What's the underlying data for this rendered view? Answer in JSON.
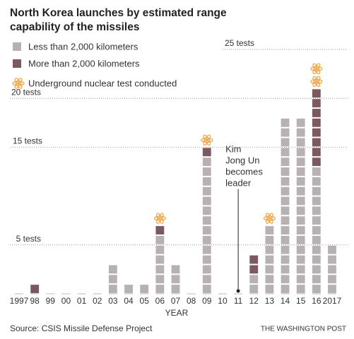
{
  "chart_data": {
    "type": "unit-stack",
    "title_lines": [
      "North Korea launches by estimated range",
      "capability of the missiles"
    ],
    "categories": [
      "1997",
      "98",
      "99",
      "00",
      "01",
      "02",
      "03",
      "04",
      "05",
      "06",
      "07",
      "08",
      "09",
      "10",
      "11",
      "12",
      "13",
      "14",
      "15",
      "16",
      "2017"
    ],
    "series": [
      {
        "name": "Less than 2,000 kilometers",
        "color": "#b8b1b3",
        "values": [
          0,
          0,
          0,
          0,
          0,
          0,
          3,
          1,
          1,
          6,
          3,
          0,
          14,
          0,
          0,
          2,
          7,
          18,
          18,
          13,
          5
        ]
      },
      {
        "name": "More than 2,000 kilometers",
        "color": "#7b5960",
        "values": [
          0,
          1,
          0,
          0,
          0,
          0,
          0,
          0,
          0,
          1,
          0,
          0,
          1,
          0,
          0,
          2,
          0,
          0,
          0,
          8,
          0
        ]
      }
    ],
    "nuclear_legend": "Underground nuclear test conducted",
    "nuclear_tests": [
      0,
      0,
      0,
      0,
      0,
      0,
      0,
      0,
      0,
      1,
      0,
      0,
      1,
      0,
      0,
      0,
      1,
      0,
      0,
      2,
      0
    ],
    "nuclear_color": "#f0a94c",
    "ylim": [
      0,
      25
    ],
    "yticks": [
      {
        "value": 5,
        "label": "5 tests"
      },
      {
        "value": 15,
        "label": "15 tests"
      },
      {
        "value": 20,
        "label": "20 tests"
      },
      {
        "value": 25,
        "label": "25 tests"
      }
    ],
    "grid": true,
    "xlabel": "YEAR",
    "annotation_lines": [
      "Kim",
      "Jong Un",
      "becomes",
      "leader"
    ],
    "annotation_category": "11",
    "source": "Source: CSIS Missile Defense Project",
    "credit": "THE WASHINGTON POST"
  }
}
